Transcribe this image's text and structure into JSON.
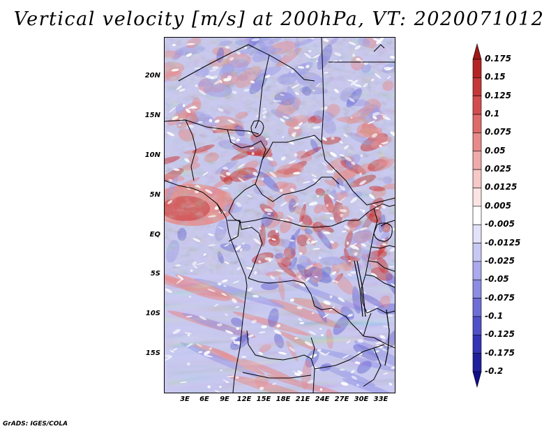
{
  "title": "Vertical velocity [m/s] at 200hPa, VT: 2020071012",
  "credit": "GrADS: IGES/COLA",
  "lat_labels": [
    "20N",
    "15N",
    "10N",
    "5N",
    "EQ",
    "5S",
    "10S",
    "15S"
  ],
  "lon_labels": [
    "3E",
    "6E",
    "9E",
    "12E",
    "15E",
    "18E",
    "21E",
    "24E",
    "27E",
    "30E",
    "33E"
  ],
  "colorbar": {
    "labels": [
      "0.175",
      "0.15",
      "0.125",
      "0.1",
      "0.075",
      "0.05",
      "0.025",
      "0.0125",
      "0.005",
      "-0.005",
      "-0.0125",
      "-0.025",
      "-0.05",
      "-0.075",
      "-0.1",
      "-0.125",
      "-0.175",
      "-0.2"
    ],
    "colors": [
      "#a01818",
      "#b42424",
      "#c43838",
      "#d24e4e",
      "#de6a6a",
      "#e88a8a",
      "#f0aaaa",
      "#f6c8c8",
      "#fbe4e4",
      "#ffffff",
      "#e2e2fa",
      "#c8c8f4",
      "#aaaaec",
      "#8c8ce2",
      "#6e6ed6",
      "#5050c8",
      "#3434b4",
      "#20209c",
      "#10108a"
    ]
  },
  "map_colors": {
    "strong_up": "#c83030",
    "up": "#e88a8a",
    "weak_up": "#f6c8c8",
    "neutral": "#ffffff",
    "weak_down": "#d8d8f6",
    "down": "#9a9aea",
    "strong_down": "#5a5ad0"
  }
}
